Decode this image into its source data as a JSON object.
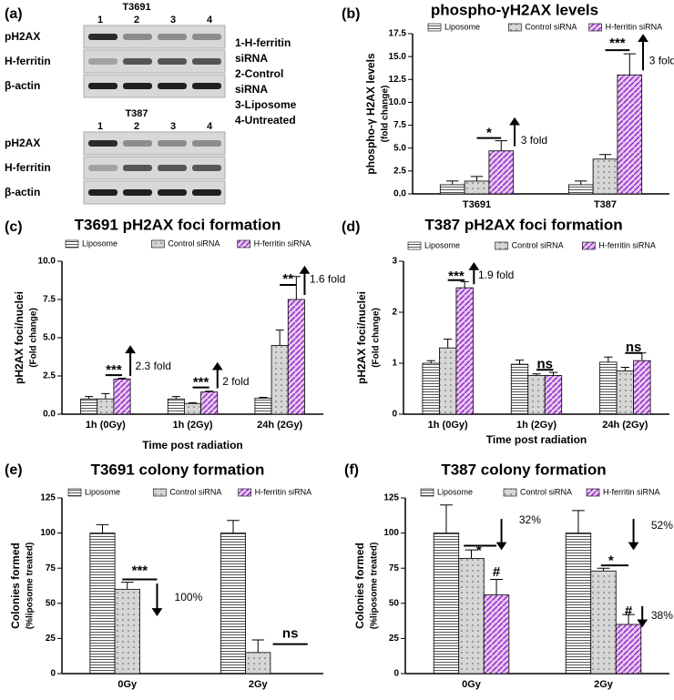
{
  "blot": {
    "panel_label": "(a)",
    "groups": [
      {
        "title": "T3691",
        "lanes": [
          "1",
          "2",
          "3",
          "4"
        ],
        "rows": [
          "pH2AX",
          "H-ferritin",
          "β-actin"
        ]
      },
      {
        "title": "T387",
        "lanes": [
          "1",
          "2",
          "3",
          "4"
        ],
        "rows": [
          "pH2AX",
          "H-ferritin",
          "β-actin"
        ]
      }
    ],
    "legend": [
      "1-H-ferritin",
      "siRNA",
      "2-Control",
      "siRNA",
      "3-Liposome",
      "4-Untreated"
    ]
  },
  "chart_data": [
    {
      "type": "bar",
      "panel_label": "(b)",
      "title": "phospho-γH2AX levels",
      "ylabel": [
        "phospho-γ H2AX levels",
        "(fold change)"
      ],
      "categories": [
        "T3691",
        "T387"
      ],
      "series": [
        {
          "name": "Liposome",
          "color": "#555555",
          "hatch": "horizontal",
          "values": [
            1.0,
            1.0
          ],
          "errors": [
            0.4,
            0.4
          ]
        },
        {
          "name": "Control siRNA",
          "color": "#888888",
          "hatch": "dots",
          "values": [
            1.4,
            3.8
          ],
          "errors": [
            0.5,
            0.5
          ]
        },
        {
          "name": "H-ferritin siRNA",
          "color": "#9b30c8",
          "hatch": "diagonal",
          "values": [
            4.7,
            13.0
          ],
          "errors": [
            1.1,
            2.3
          ]
        }
      ],
      "ylim": [
        0,
        17.5
      ],
      "yticks": [
        {
          "value": 0,
          "label": "0.0"
        },
        {
          "value": 2.5,
          "label": "2.5"
        },
        {
          "value": 5,
          "label": "5.0"
        },
        {
          "value": 7.5,
          "label": "7.5"
        },
        {
          "value": 10,
          "label": "10.0"
        },
        {
          "value": 12.5,
          "label": "12.5"
        },
        {
          "value": 15,
          "label": "15.0"
        },
        {
          "value": 17.5,
          "label": "17.5"
        }
      ],
      "annotations": [
        "*",
        "3 fold",
        "***",
        "3 fold"
      ]
    },
    {
      "type": "bar",
      "panel_label": "(c)",
      "title": "T3691 pH2AX foci formation",
      "ylabel": [
        "pH2AX foci/nuclei",
        "(Fold change)"
      ],
      "xlabel": "Time post radiation",
      "categories": [
        "1h (0Gy)",
        "1h (2Gy)",
        "24h (2Gy)"
      ],
      "series": [
        {
          "name": "Liposome",
          "color": "#555555",
          "hatch": "horizontal",
          "values": [
            1.0,
            1.0,
            1.05
          ],
          "errors": [
            0.15,
            0.15,
            0.05
          ]
        },
        {
          "name": "Control siRNA",
          "color": "#888888",
          "hatch": "dots",
          "values": [
            1.0,
            0.7,
            4.5
          ],
          "errors": [
            0.35,
            0.05,
            1.0
          ]
        },
        {
          "name": "H-ferritin siRNA",
          "color": "#9b30c8",
          "hatch": "diagonal",
          "values": [
            2.3,
            1.45,
            7.5
          ],
          "errors": [
            0.05,
            0.05,
            1.5
          ]
        }
      ],
      "ylim": [
        0,
        10
      ],
      "yticks": [
        {
          "value": 0,
          "label": "0.0"
        },
        {
          "value": 2.5,
          "label": "2.5"
        },
        {
          "value": 5,
          "label": "5.0"
        },
        {
          "value": 7.5,
          "label": "7.5"
        },
        {
          "value": 10,
          "label": "10.0"
        }
      ],
      "annotations": [
        "***",
        "2.3 fold",
        "***",
        "2 fold",
        "**",
        "1.6 fold"
      ]
    },
    {
      "type": "bar",
      "panel_label": "(d)",
      "title": "T387 pH2AX foci formation",
      "ylabel": [
        "pH2AX foci/nuclei",
        "(Fold change)"
      ],
      "xlabel": "Time post radiation",
      "categories": [
        "1h (0Gy)",
        "1h (2Gy)",
        "24h (2Gy)"
      ],
      "series": [
        {
          "name": "Liposome",
          "color": "#555555",
          "hatch": "horizontal",
          "values": [
            1.0,
            0.98,
            1.02
          ],
          "errors": [
            0.05,
            0.08,
            0.1
          ]
        },
        {
          "name": "Control siRNA",
          "color": "#888888",
          "hatch": "dots",
          "values": [
            1.3,
            0.76,
            0.85
          ],
          "errors": [
            0.17,
            0.03,
            0.07
          ]
        },
        {
          "name": "H-ferritin siRNA",
          "color": "#9b30c8",
          "hatch": "diagonal",
          "values": [
            2.48,
            0.76,
            1.05
          ],
          "errors": [
            0.12,
            0.06,
            0.15
          ]
        }
      ],
      "ylim": [
        0,
        3
      ],
      "yticks": [
        0,
        1,
        2,
        3
      ],
      "annotations": [
        "***",
        "1.9 fold",
        "ns",
        "ns"
      ]
    },
    {
      "type": "bar",
      "panel_label": "(e)",
      "title": "T3691 colony formation",
      "ylabel": [
        "Colonies formed",
        "(%liposome treated)"
      ],
      "categories": [
        "0Gy",
        "2Gy"
      ],
      "series": [
        {
          "name": "Liposome",
          "color": "#555555",
          "hatch": "horizontal",
          "values": [
            100,
            100
          ],
          "errors": [
            6,
            9
          ]
        },
        {
          "name": "Control siRNA",
          "color": "#888888",
          "hatch": "dots",
          "values": [
            60,
            15
          ],
          "errors": [
            5,
            9
          ]
        },
        {
          "name": "H-ferritin siRNA",
          "color": "#9b30c8",
          "hatch": "diagonal",
          "values": [
            0,
            0
          ],
          "errors": [
            0,
            0
          ]
        }
      ],
      "ylim": [
        0,
        125
      ],
      "yticks": [
        0,
        25,
        50,
        75,
        100,
        125
      ],
      "annotations": [
        "***",
        "100%",
        "ns"
      ]
    },
    {
      "type": "bar",
      "panel_label": "(f)",
      "title": "T387 colony formation",
      "ylabel": [
        "Colonies formed",
        "(%liposome treated)"
      ],
      "categories": [
        "0Gy",
        "2Gy"
      ],
      "series": [
        {
          "name": "Liposome",
          "color": "#555555",
          "hatch": "horizontal",
          "values": [
            100,
            100
          ],
          "errors": [
            20,
            16
          ]
        },
        {
          "name": "Control siRNA",
          "color": "#888888",
          "hatch": "dots",
          "values": [
            82,
            73
          ],
          "errors": [
            6,
            2
          ]
        },
        {
          "name": "H-ferritin siRNA",
          "color": "#9b30c8",
          "hatch": "diagonal",
          "values": [
            56,
            35
          ],
          "errors": [
            11,
            7
          ]
        }
      ],
      "ylim": [
        0,
        125
      ],
      "yticks": [
        0,
        25,
        50,
        75,
        100,
        125
      ],
      "annotations": [
        "*",
        "32%",
        "#",
        "*",
        "52%",
        "#",
        "38%"
      ]
    }
  ]
}
